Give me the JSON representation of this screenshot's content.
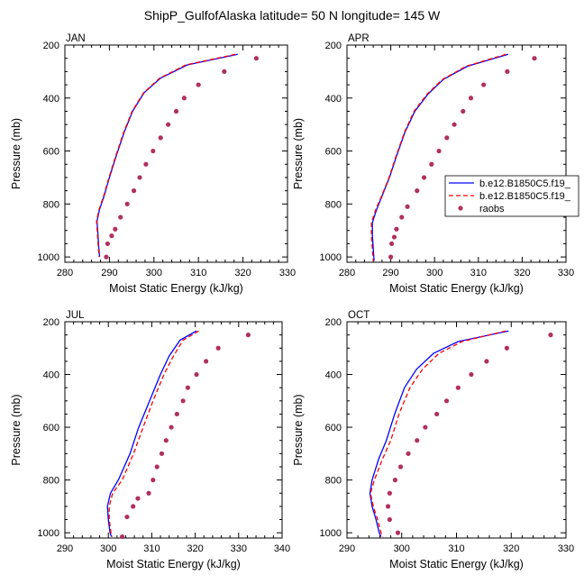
{
  "figure": {
    "title": "ShipP_GulfofAlaska  latitude= 50 N longitude= 145 W",
    "xlabel": "Moist Static Energy (kJ/kg)",
    "ylabel": "Pressure (mb)"
  },
  "legend": {
    "entries": [
      {
        "label": "b.e12.B1850C5.f19_",
        "color": "#0000ff",
        "style": "solid"
      },
      {
        "label": "b.e12.B1850C5.f19_",
        "color": "#ff0000",
        "style": "dashed"
      },
      {
        "label": "raobs",
        "color": "#b03060",
        "style": "marker"
      }
    ]
  },
  "colors": {
    "model1": "#0000ff",
    "model2": "#ff0000",
    "raobs": "#b03060"
  },
  "chart_data": [
    {
      "type": "line",
      "panel": "JAN",
      "xlim": [
        280,
        330
      ],
      "xticks": [
        280,
        290,
        300,
        310,
        320,
        330
      ],
      "ylim": [
        200,
        1020
      ],
      "yticks": [
        200,
        400,
        600,
        800,
        1000
      ],
      "y_inverted": true,
      "series": [
        {
          "key": "model1",
          "points": [
            [
              318.8,
              235
            ],
            [
              307.5,
              275
            ],
            [
              301.5,
              325
            ],
            [
              297.8,
              380
            ],
            [
              295.2,
              450
            ],
            [
              293.3,
              530
            ],
            [
              291.5,
              620
            ],
            [
              290,
              700
            ],
            [
              288.8,
              770
            ],
            [
              287.8,
              820
            ],
            [
              287.2,
              865
            ],
            [
              287.4,
              910
            ],
            [
              287.6,
              960
            ],
            [
              287.8,
              1000
            ]
          ]
        },
        {
          "key": "model2",
          "points": [
            [
              318.3,
              235
            ],
            [
              307.2,
              275
            ],
            [
              301.3,
              325
            ],
            [
              297.7,
              380
            ],
            [
              295.1,
              450
            ],
            [
              293.2,
              530
            ],
            [
              291.4,
              620
            ],
            [
              289.9,
              700
            ],
            [
              288.7,
              770
            ],
            [
              287.7,
              820
            ],
            [
              287.1,
              865
            ],
            [
              287.3,
              910
            ],
            [
              287.5,
              960
            ],
            [
              287.7,
              1000
            ]
          ]
        },
        {
          "key": "raobs",
          "points": [
            [
              323,
              250
            ],
            [
              315.8,
              300
            ],
            [
              310,
              350
            ],
            [
              306.8,
              400
            ],
            [
              305,
              450
            ],
            [
              303.2,
              500
            ],
            [
              301.5,
              550
            ],
            [
              299.8,
              600
            ],
            [
              298.2,
              650
            ],
            [
              296.8,
              700
            ],
            [
              295.5,
              750
            ],
            [
              294,
              800
            ],
            [
              292.5,
              850
            ],
            [
              291.3,
              895
            ],
            [
              290.5,
              920
            ],
            [
              289.6,
              950
            ],
            [
              289.3,
              1000
            ]
          ]
        }
      ]
    },
    {
      "type": "line",
      "panel": "APR",
      "xlim": [
        280,
        330
      ],
      "xticks": [
        280,
        290,
        300,
        310,
        320,
        330
      ],
      "ylim": [
        200,
        1020
      ],
      "yticks": [
        200,
        400,
        600,
        800,
        1000
      ],
      "y_inverted": true,
      "series": [
        {
          "key": "model1",
          "points": [
            [
              316.8,
              235
            ],
            [
              307.5,
              280
            ],
            [
              302,
              330
            ],
            [
              298.5,
              385
            ],
            [
              295.5,
              450
            ],
            [
              293.2,
              530
            ],
            [
              291.3,
              620
            ],
            [
              289.7,
              700
            ],
            [
              288,
              770
            ],
            [
              286.8,
              820
            ],
            [
              285.8,
              870
            ],
            [
              285.8,
              920
            ],
            [
              286,
              970
            ],
            [
              286.2,
              1015
            ]
          ]
        },
        {
          "key": "model2",
          "points": [
            [
              316.3,
              235
            ],
            [
              307.2,
              280
            ],
            [
              301.8,
              330
            ],
            [
              298.3,
              385
            ],
            [
              295.3,
              450
            ],
            [
              293.1,
              530
            ],
            [
              291.2,
              620
            ],
            [
              289.6,
              700
            ],
            [
              287.9,
              770
            ],
            [
              286.6,
              820
            ],
            [
              285.6,
              870
            ],
            [
              285.6,
              920
            ],
            [
              285.8,
              970
            ],
            [
              286,
              1015
            ]
          ]
        },
        {
          "key": "raobs",
          "points": [
            [
              322.8,
              250
            ],
            [
              316.6,
              300
            ],
            [
              311.2,
              350
            ],
            [
              308.3,
              400
            ],
            [
              306.5,
              450
            ],
            [
              304.5,
              500
            ],
            [
              302.8,
              550
            ],
            [
              301,
              600
            ],
            [
              299.3,
              650
            ],
            [
              297.6,
              700
            ],
            [
              296,
              750
            ],
            [
              293.8,
              810
            ],
            [
              292.5,
              850
            ],
            [
              291.3,
              895
            ],
            [
              290.8,
              925
            ],
            [
              290.2,
              950
            ],
            [
              290,
              1000
            ]
          ]
        }
      ]
    },
    {
      "type": "line",
      "panel": "JUL",
      "xlim": [
        290,
        340
      ],
      "xticks": [
        290,
        300,
        310,
        320,
        330,
        340
      ],
      "ylim": [
        200,
        1020
      ],
      "yticks": [
        200,
        400,
        600,
        800,
        1000
      ],
      "y_inverted": true,
      "series": [
        {
          "key": "model1",
          "points": [
            [
              320.3,
              235
            ],
            [
              316.5,
              270
            ],
            [
              314,
              330
            ],
            [
              312,
              400
            ],
            [
              309.5,
              500
            ],
            [
              307,
              600
            ],
            [
              305,
              700
            ],
            [
              302.3,
              800
            ],
            [
              300.5,
              850
            ],
            [
              299.8,
              900
            ],
            [
              300,
              950
            ],
            [
              300.4,
              1000
            ],
            [
              300.7,
              1015
            ]
          ]
        },
        {
          "key": "model2",
          "points": [
            [
              320.8,
              235
            ],
            [
              317.2,
              270
            ],
            [
              315,
              330
            ],
            [
              312.8,
              400
            ],
            [
              310.3,
              500
            ],
            [
              308,
              600
            ],
            [
              305.8,
              700
            ],
            [
              303.2,
              800
            ],
            [
              301,
              850
            ],
            [
              300.2,
              900
            ],
            [
              300.2,
              950
            ],
            [
              300.6,
              1000
            ],
            [
              300.9,
              1015
            ]
          ]
        },
        {
          "key": "raobs",
          "points": [
            [
              332.2,
              250
            ],
            [
              325.3,
              300
            ],
            [
              322.5,
              350
            ],
            [
              320.3,
              400
            ],
            [
              318.3,
              450
            ],
            [
              317.2,
              500
            ],
            [
              315.8,
              550
            ],
            [
              314.5,
              600
            ],
            [
              313.3,
              650
            ],
            [
              312.3,
              700
            ],
            [
              311.2,
              750
            ],
            [
              310.3,
              800
            ],
            [
              309.3,
              850
            ],
            [
              306.8,
              870
            ],
            [
              305.7,
              900
            ],
            [
              304.3,
              940
            ],
            [
              303.2,
              1015
            ]
          ]
        }
      ]
    },
    {
      "type": "line",
      "panel": "OCT",
      "xlim": [
        290,
        330
      ],
      "xticks": [
        290,
        300,
        310,
        320,
        330
      ],
      "ylim": [
        200,
        1020
      ],
      "yticks": [
        200,
        400,
        600,
        800,
        1000
      ],
      "y_inverted": true,
      "series": [
        {
          "key": "model1",
          "points": [
            [
              319.5,
              235
            ],
            [
              310.3,
              275
            ],
            [
              305.8,
              320
            ],
            [
              302.7,
              380
            ],
            [
              300.5,
              450
            ],
            [
              298.7,
              550
            ],
            [
              297.2,
              650
            ],
            [
              295.8,
              720
            ],
            [
              294.6,
              800
            ],
            [
              294.2,
              850
            ],
            [
              294.6,
              900
            ],
            [
              295.3,
              950
            ],
            [
              295.9,
              1000
            ],
            [
              296.2,
              1015
            ]
          ]
        },
        {
          "key": "model2",
          "points": [
            [
              319,
              235
            ],
            [
              311,
              275
            ],
            [
              306.8,
              320
            ],
            [
              303.8,
              380
            ],
            [
              301.5,
              450
            ],
            [
              299.5,
              550
            ],
            [
              298,
              650
            ],
            [
              296.5,
              720
            ],
            [
              295,
              800
            ],
            [
              294.3,
              850
            ],
            [
              294.8,
              900
            ],
            [
              295.6,
              950
            ],
            [
              296.2,
              1000
            ],
            [
              296.6,
              1015
            ]
          ]
        },
        {
          "key": "raobs",
          "points": [
            [
              327.2,
              250
            ],
            [
              319.2,
              300
            ],
            [
              315.5,
              350
            ],
            [
              312.7,
              400
            ],
            [
              310.3,
              450
            ],
            [
              308.2,
              500
            ],
            [
              306.4,
              550
            ],
            [
              304.3,
              600
            ],
            [
              302.8,
              650
            ],
            [
              301.2,
              700
            ],
            [
              299.8,
              750
            ],
            [
              298.8,
              800
            ],
            [
              297.8,
              850
            ],
            [
              297.5,
              900
            ],
            [
              297.8,
              950
            ],
            [
              299.3,
              1000
            ]
          ]
        }
      ]
    }
  ]
}
